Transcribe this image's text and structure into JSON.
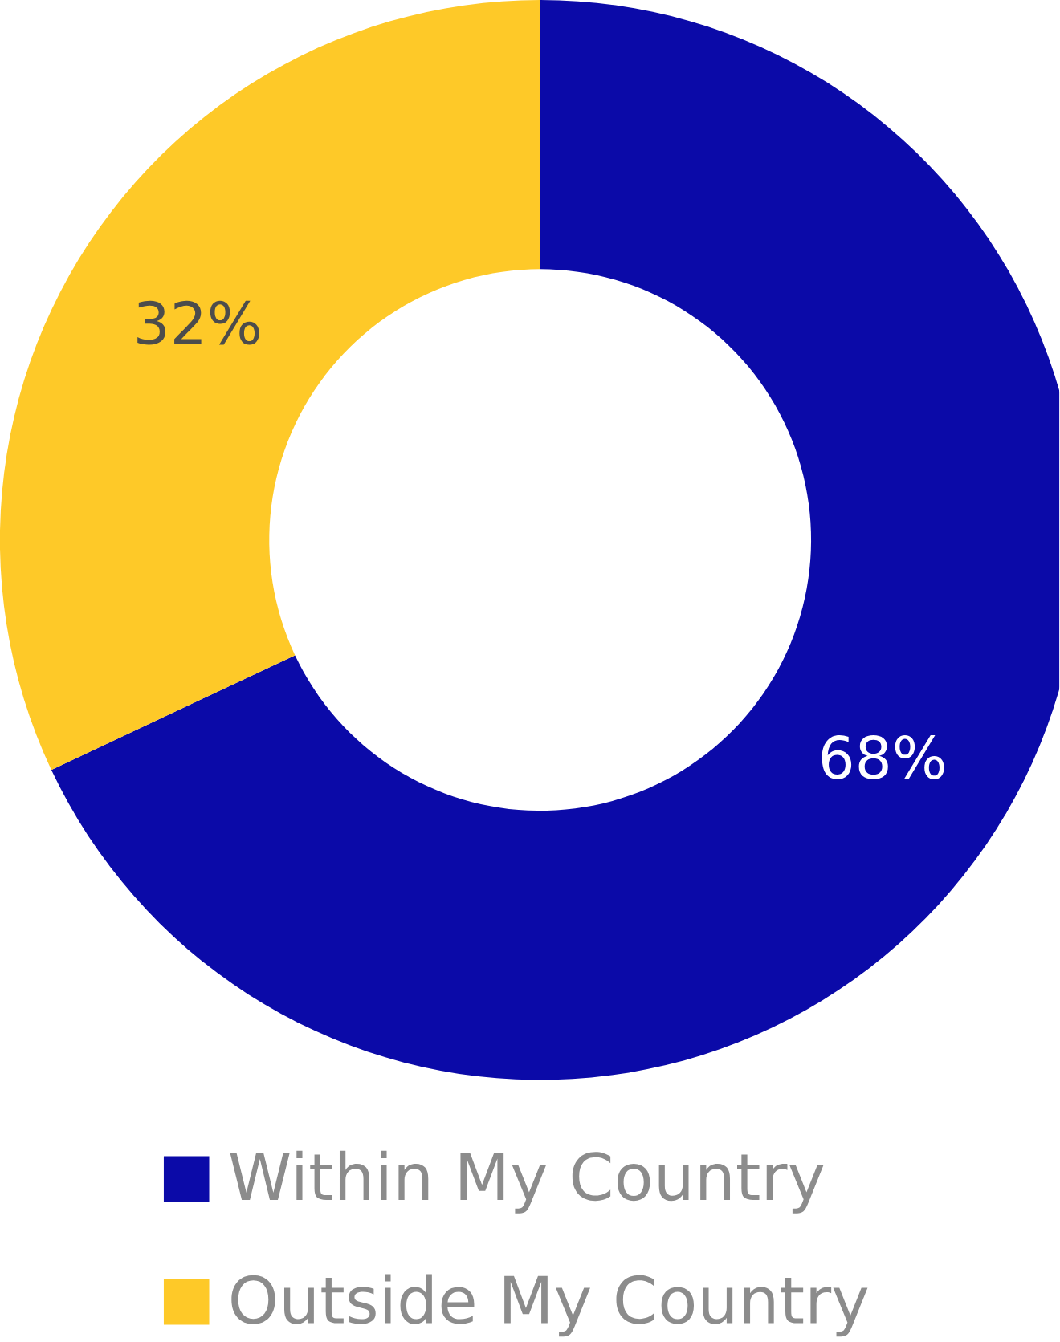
{
  "chart_data": {
    "type": "donut",
    "categories": [
      "Within My Country",
      "Outside My Country"
    ],
    "values": [
      68,
      32
    ],
    "colors": [
      "#0b0aa8",
      "#fec928"
    ],
    "value_labels": [
      "68%",
      "32%"
    ],
    "legend": "bottom"
  }
}
